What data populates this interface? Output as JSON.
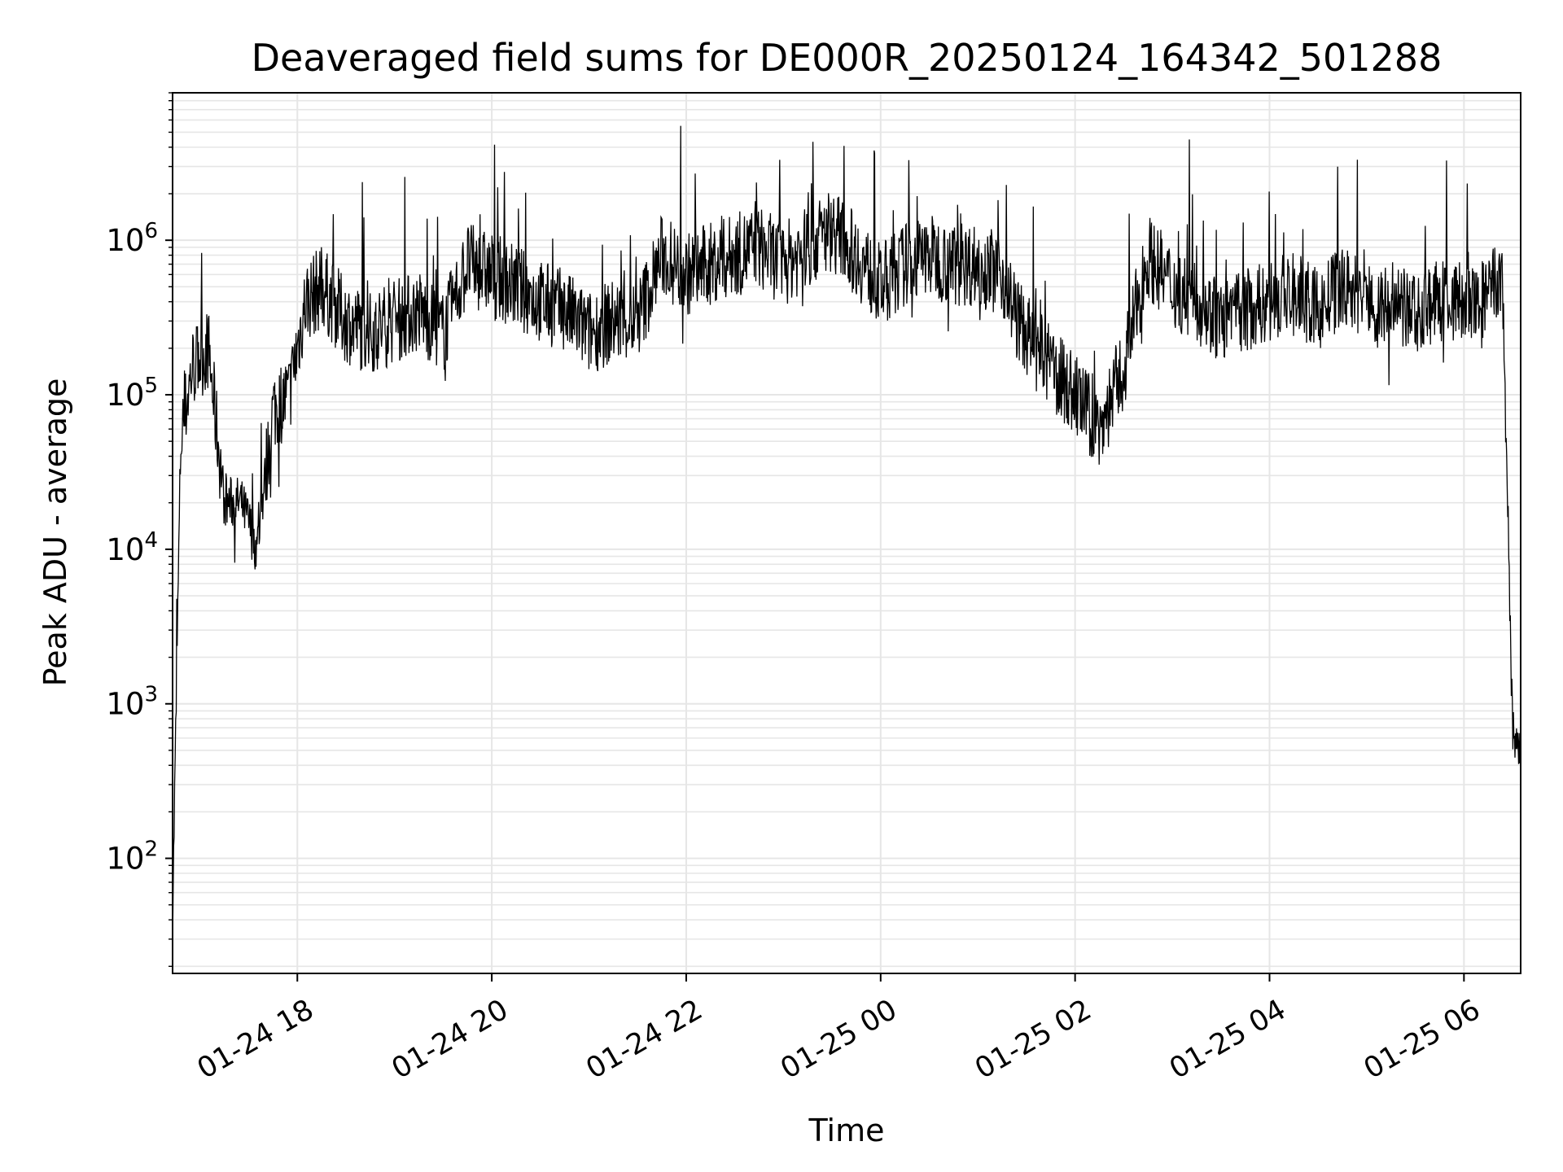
{
  "chart_data": {
    "type": "line",
    "title": "Deaveraged field sums for DE000R_20250124_164342_501288",
    "xlabel": "Time",
    "ylabel": "Peak ADU - average",
    "yscale": "log",
    "ylim": [
      18,
      9000000
    ],
    "xlim": [
      "2025-01-24 16:43",
      "2025-01-25 06:35"
    ],
    "grid": true,
    "line_color": "#000000",
    "grid_color": "#e6e6e6",
    "x_ticks": [
      {
        "t": "2025-01-24 18:00",
        "label": "01-24 18"
      },
      {
        "t": "2025-01-24 20:00",
        "label": "01-24 20"
      },
      {
        "t": "2025-01-24 22:00",
        "label": "01-24 22"
      },
      {
        "t": "2025-01-25 00:00",
        "label": "01-25 00"
      },
      {
        "t": "2025-01-25 02:00",
        "label": "01-25 02"
      },
      {
        "t": "2025-01-25 04:00",
        "label": "01-25 04"
      },
      {
        "t": "2025-01-25 06:00",
        "label": "01-25 06"
      }
    ],
    "y_ticks": [
      {
        "value": 100,
        "base": "10",
        "exp": "2"
      },
      {
        "value": 1000,
        "base": "10",
        "exp": "3"
      },
      {
        "value": 10000,
        "base": "10",
        "exp": "4"
      },
      {
        "value": 100000,
        "base": "10",
        "exp": "5"
      },
      {
        "value": 1000000,
        "base": "10",
        "exp": "6"
      }
    ],
    "series": [
      {
        "x": [
          "2025-01-24 16:43",
          "2025-01-24 16:48",
          "2025-01-24 16:55",
          "2025-01-24 17:05",
          "2025-01-24 17:15",
          "2025-01-24 17:25",
          "2025-01-24 17:30",
          "2025-01-24 17:35",
          "2025-01-24 17:45",
          "2025-01-24 17:55",
          "2025-01-24 18:05",
          "2025-01-24 18:15",
          "2025-01-24 18:30",
          "2025-01-24 18:45",
          "2025-01-24 19:00",
          "2025-01-24 19:15",
          "2025-01-24 19:30",
          "2025-01-24 19:45",
          "2025-01-24 20:00",
          "2025-01-24 20:15",
          "2025-01-24 20:30",
          "2025-01-24 20:45",
          "2025-01-24 21:00",
          "2025-01-24 21:15",
          "2025-01-24 21:30",
          "2025-01-24 21:45",
          "2025-01-24 22:00",
          "2025-01-24 22:15",
          "2025-01-24 22:30",
          "2025-01-24 22:45",
          "2025-01-24 23:00",
          "2025-01-24 23:15",
          "2025-01-24 23:30",
          "2025-01-24 23:45",
          "2025-01-25 00:00",
          "2025-01-25 00:15",
          "2025-01-25 00:30",
          "2025-01-25 00:45",
          "2025-01-25 01:00",
          "2025-01-25 01:15",
          "2025-01-25 01:25",
          "2025-01-25 01:35",
          "2025-01-25 01:45",
          "2025-01-25 02:00",
          "2025-01-25 02:15",
          "2025-01-25 02:30",
          "2025-01-25 02:45",
          "2025-01-25 03:00",
          "2025-01-25 03:15",
          "2025-01-25 03:30",
          "2025-01-25 03:45",
          "2025-01-25 04:00",
          "2025-01-25 04:15",
          "2025-01-25 04:30",
          "2025-01-25 04:45",
          "2025-01-25 05:00",
          "2025-01-25 05:15",
          "2025-01-25 05:30",
          "2025-01-25 05:45",
          "2025-01-25 06:00",
          "2025-01-25 06:10",
          "2025-01-25 06:18",
          "2025-01-25 06:24",
          "2025-01-25 06:30",
          "2025-01-25 06:35"
        ],
        "values": [
          40,
          50000,
          150000,
          200000,
          20000,
          20000,
          15000,
          10000,
          80000,
          100000,
          400000,
          500000,
          300000,
          250000,
          300000,
          350000,
          250000,
          700000,
          600000,
          500000,
          400000,
          350000,
          250000,
          300000,
          300000,
          800000,
          600000,
          700000,
          800000,
          900000,
          700000,
          900000,
          1200000,
          800000,
          500000,
          700000,
          800000,
          700000,
          700000,
          600000,
          300000,
          200000,
          150000,
          100000,
          60000,
          150000,
          800000,
          500000,
          400000,
          300000,
          350000,
          400000,
          450000,
          350000,
          500000,
          400000,
          350000,
          350000,
          400000,
          400000,
          350000,
          500000,
          500000,
          700,
          400
        ]
      }
    ]
  }
}
